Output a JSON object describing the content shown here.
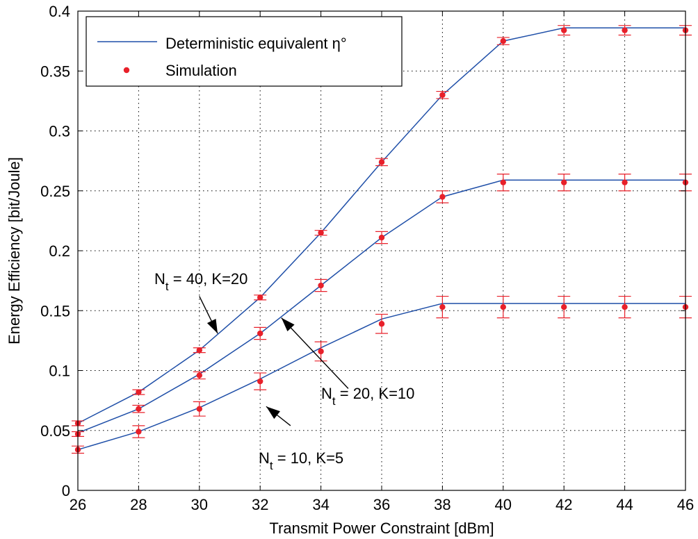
{
  "chart_data": {
    "type": "line",
    "title": "",
    "xlabel": "Transmit Power Constraint [dBm]",
    "ylabel": "Energy Efficiency [bit/Joule]",
    "xlim": [
      26,
      46
    ],
    "ylim": [
      0,
      0.4
    ],
    "x_ticks": [
      26,
      28,
      30,
      32,
      34,
      36,
      38,
      40,
      42,
      44,
      46
    ],
    "y_ticks": [
      0,
      0.05,
      0.1,
      0.15,
      0.2,
      0.25,
      0.3,
      0.35,
      0.4
    ],
    "x_tick_labels": [
      "26",
      "28",
      "30",
      "32",
      "34",
      "36",
      "38",
      "40",
      "42",
      "44",
      "46"
    ],
    "y_tick_labels": [
      "0",
      "0.05",
      "0.1",
      "0.15",
      "0.2",
      "0.25",
      "0.3",
      "0.35",
      "0.4"
    ],
    "grid": true,
    "legend_position": "top-left",
    "legend": [
      {
        "label": "Deterministic equivalent η°",
        "style": "line",
        "color": "#1f4fa8"
      },
      {
        "label": "Simulation",
        "style": "marker",
        "color": "#e8202a"
      }
    ],
    "x": [
      26,
      28,
      30,
      32,
      34,
      36,
      38,
      40,
      42,
      44,
      46
    ],
    "series": [
      {
        "group": "Nt=40, K=20",
        "deterministic": [
          0.056,
          0.082,
          0.117,
          0.161,
          0.215,
          0.274,
          0.33,
          0.375,
          0.386,
          0.386,
          0.386
        ],
        "simulation": [
          0.056,
          0.082,
          0.117,
          0.161,
          0.215,
          0.274,
          0.33,
          0.375,
          0.384,
          0.384,
          0.384
        ],
        "error": [
          0.002,
          0.002,
          0.002,
          0.002,
          0.002,
          0.003,
          0.003,
          0.003,
          0.004,
          0.004,
          0.004
        ]
      },
      {
        "group": "Nt=20, K=10",
        "deterministic": [
          0.048,
          0.068,
          0.097,
          0.131,
          0.171,
          0.211,
          0.245,
          0.259,
          0.259,
          0.259,
          0.259
        ],
        "simulation": [
          0.047,
          0.068,
          0.096,
          0.131,
          0.171,
          0.211,
          0.245,
          0.257,
          0.257,
          0.257,
          0.257
        ],
        "error": [
          0.002,
          0.003,
          0.003,
          0.005,
          0.005,
          0.005,
          0.005,
          0.007,
          0.007,
          0.007,
          0.007
        ]
      },
      {
        "group": "Nt=10, K=5",
        "deterministic": [
          0.034,
          0.049,
          0.069,
          0.093,
          0.119,
          0.143,
          0.156,
          0.156,
          0.156,
          0.156,
          0.156
        ],
        "simulation": [
          0.034,
          0.049,
          0.068,
          0.091,
          0.116,
          0.139,
          0.153,
          0.153,
          0.153,
          0.153,
          0.153
        ],
        "error": [
          0.003,
          0.005,
          0.006,
          0.007,
          0.008,
          0.008,
          0.009,
          0.009,
          0.009,
          0.009,
          0.009
        ]
      }
    ],
    "annotations": [
      {
        "base": "N",
        "sub": "t",
        "rest": " = 40, K=20",
        "arrow_to": [
          30.6,
          0.131
        ],
        "arrow_from": [
          30.0,
          0.162
        ]
      },
      {
        "base": "N",
        "sub": "t",
        "rest": " = 20, K=10",
        "arrow_to": [
          32.7,
          0.144
        ],
        "arrow_from": [
          34.9,
          0.085
        ]
      },
      {
        "base": "N",
        "sub": "t",
        "rest": " = 10, K=5",
        "arrow_to": [
          32.2,
          0.07
        ],
        "arrow_from": [
          33.0,
          0.054
        ]
      }
    ]
  }
}
